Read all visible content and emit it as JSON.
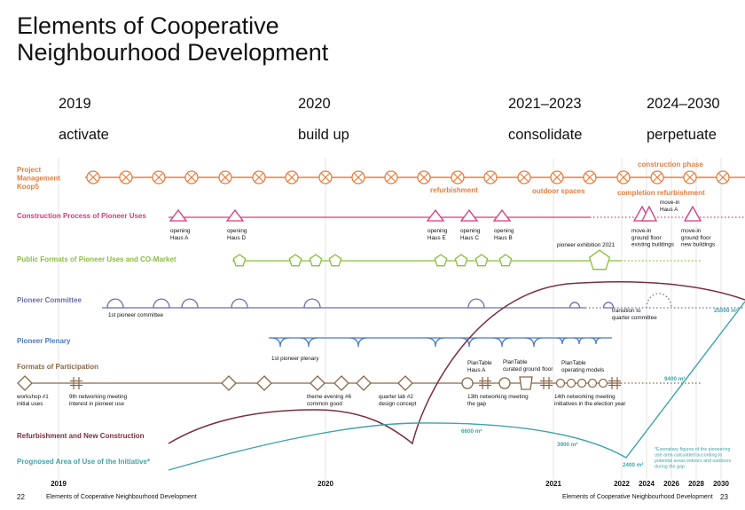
{
  "title": {
    "line1": "Elements of Cooperative",
    "line2": "Neighbourhood Development"
  },
  "phases": [
    {
      "year": "2019",
      "label": "activate"
    },
    {
      "year": "2020",
      "label": "build up"
    },
    {
      "year": "2021–2023",
      "label": "consolidate"
    },
    {
      "year": "2024–2030",
      "label": "perpetuate"
    }
  ],
  "colors": {
    "orange": "#e67d3e",
    "magenta": "#d63a7d",
    "green": "#8bbd3c",
    "purple": "#6a6fb0",
    "blue": "#4a7bc2",
    "brown": "#8a6747",
    "maroon": "#7a2f3e",
    "teal": "#3fa4a8"
  },
  "rows": {
    "project_management": {
      "label_lines": [
        "Project",
        "Management",
        "Koop5"
      ],
      "annotations": [
        "construction phase",
        "refurbishment",
        "outdoor spaces",
        "completion refurbishment"
      ]
    },
    "construction": {
      "label": "Construction Process of Pioneer Uses",
      "events": [
        {
          "lines": [
            "opening",
            "Haus A"
          ]
        },
        {
          "lines": [
            "opening",
            "Haus D"
          ]
        },
        {
          "lines": [
            "opening",
            "Haus E"
          ]
        },
        {
          "lines": [
            "opening",
            "Haus C"
          ]
        },
        {
          "lines": [
            "opening",
            "Haus B"
          ]
        },
        {
          "lines": [
            "move-in",
            "ground floor",
            "existing buildings"
          ]
        },
        {
          "lines": [
            "move-in",
            "Haus A"
          ]
        },
        {
          "lines": [
            "move-in",
            "ground floor",
            "new buildings"
          ]
        }
      ]
    },
    "public_formats": {
      "label": "Public Formats of Pioneer Uses and CO-Market",
      "annotation": "pioneer exhibition 2021"
    },
    "committee": {
      "label": "Pioneer Committee",
      "annotations": [
        "1st pioneer committee",
        "transition to",
        "quarter committee"
      ]
    },
    "plenary": {
      "label": "Pioneer Plenary",
      "annotation": "1st pioneer plenary"
    },
    "participation": {
      "label": "Formats of Participation",
      "events": [
        {
          "lines": [
            "workshop #1",
            "initial uses"
          ]
        },
        {
          "lines": [
            "9th networking meeting",
            "interest in pioneer use"
          ]
        },
        {
          "lines": [
            "theme evening #6",
            "common good"
          ]
        },
        {
          "lines": [
            "quarter lab #2",
            "design concept"
          ]
        },
        {
          "lines": [
            "13th networking meeting",
            "the gap"
          ]
        },
        {
          "lines": [
            "14th networking meeting",
            "initiatives in the election year"
          ]
        },
        {
          "lines": [
            "PlanTable",
            "Haus A"
          ]
        },
        {
          "lines": [
            "PlanTable",
            "curated ground floor"
          ]
        },
        {
          "lines": [
            "PlanTable",
            "operating models"
          ]
        }
      ]
    },
    "refurbishment": {
      "label": "Refurbishment and New Construction"
    },
    "area": {
      "label": "Prognosed Area of Use of the Initiative*",
      "values": [
        "25000 m²",
        "9400 m²",
        "6600 m²",
        "3900 m²",
        "2400 m²"
      ],
      "footnote": [
        "*Exemplary figures of the pioneering",
        "use area calculated according to",
        "potential areas indoors and outdoors",
        "during the gap"
      ]
    }
  },
  "axis_years": [
    {
      "label": "2019",
      "bold": true
    },
    {
      "label": "2020",
      "bold": true
    },
    {
      "label": "2021",
      "bold": true
    },
    {
      "label": "2022",
      "bold": true
    },
    {
      "label": "2024",
      "bold": true
    },
    {
      "label": "2026",
      "bold": true
    },
    {
      "label": "2028",
      "bold": true
    },
    {
      "label": "2030",
      "bold": true
    }
  ],
  "footer": {
    "left_page": "22",
    "left_text": "Elements of Cooperative Neighbourhood Development",
    "right_text": "Elements of Cooperative Neighbourhood Development",
    "right_page": "23"
  }
}
